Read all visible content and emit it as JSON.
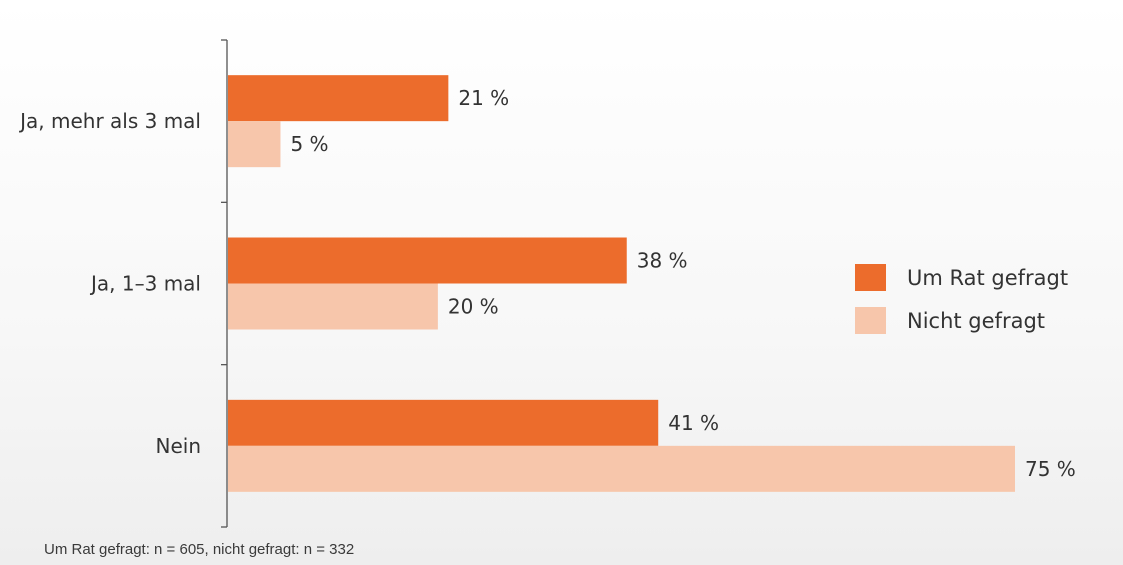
{
  "chart_data": {
    "type": "bar",
    "orientation": "horizontal",
    "categories": [
      "Ja, mehr als 3 mal",
      "Ja, 1–3 mal",
      "Nein"
    ],
    "series": [
      {
        "name": "Um Rat gefragt",
        "values": [
          21,
          38,
          41
        ],
        "labels": [
          "21 %",
          "38 %",
          "41 %"
        ],
        "color": "#EC6C2C"
      },
      {
        "name": "Nicht gefragt",
        "values": [
          5,
          20,
          75
        ],
        "labels": [
          "5 %",
          "20 %",
          "75 %"
        ],
        "color": "#F7C6AB"
      }
    ],
    "xlim": [
      0,
      75
    ],
    "grid": false,
    "legend_position": "right",
    "footnote": "Um Rat gefragt: n = 605, nicht gefragt: n = 332"
  }
}
